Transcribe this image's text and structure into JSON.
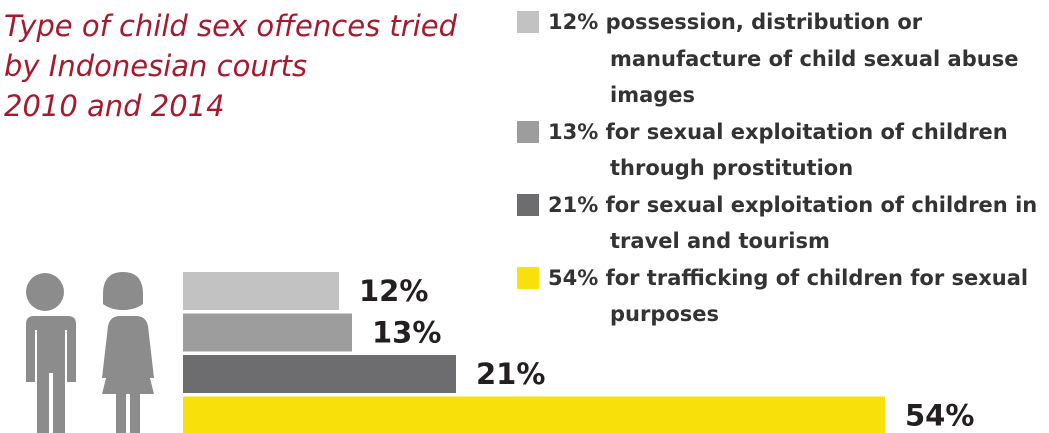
{
  "chart_data": {
    "type": "bar",
    "title": [
      "Type of child sex offences tried",
      "by Indonesian courts",
      "2010 and 2014"
    ],
    "categories": [
      "12% possession, distribution or manufacture of child sexual abuse images",
      "13% for sexual exploitation of children through prostitution",
      "21% for sexual exploitation of children in travel and tourism",
      "54% for trafficking of children for sexual purposes"
    ],
    "values": [
      12,
      13,
      21,
      54
    ],
    "value_labels": [
      "12%",
      "13%",
      "21%",
      "54%"
    ],
    "colors": [
      "#c2c2c2",
      "#9d9d9d",
      "#6d6d70",
      "#f8e00b"
    ]
  }
}
